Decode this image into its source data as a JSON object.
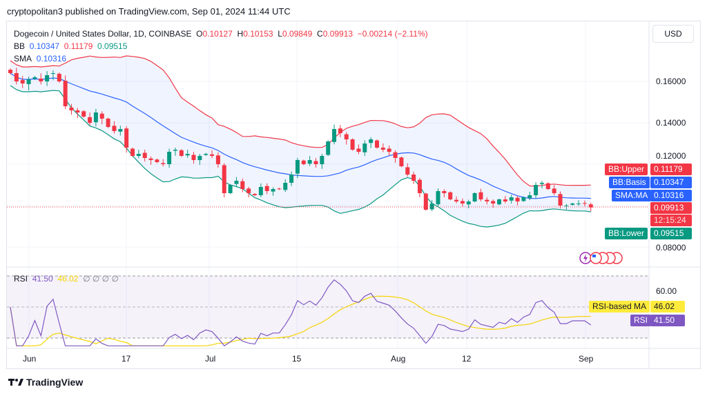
{
  "publish_line": "cryptopolitan3 published on TradingView.com, Sep 01, 2024 11:44 UTC",
  "symbol": {
    "title": "Dogecoin / United States Dollar, 1D, COINBASE",
    "o_label": "O",
    "o": "0.10127",
    "h_label": "H",
    "h": "0.10153",
    "l_label": "L",
    "l": "0.09849",
    "c_label": "C",
    "c": "0.09913",
    "change": "−0.00214 (−2.11%)"
  },
  "bb": {
    "label": "BB",
    "basis": "0.10347",
    "upper": "0.11179",
    "lower": "0.09515"
  },
  "sma": {
    "label": "SMA",
    "value": "0.10316"
  },
  "rsi_legend": {
    "label": "RSI",
    "rsi": "41.50",
    "ma": "46.02",
    "extra": "∅ ∅ ∅ ∅"
  },
  "currency": "USD",
  "price_axis": [
    "0.16000",
    "0.14000",
    "0.12000",
    "0.08000"
  ],
  "rsi_axis": [
    "60.00"
  ],
  "tags": {
    "bb_upper": [
      "BB:Upper",
      "0.11179"
    ],
    "bb_basis": [
      "BB:Basis",
      "0.10347"
    ],
    "sma": [
      "SMA:MA",
      "0.10316"
    ],
    "last": [
      "0.09913",
      "12:15:24"
    ],
    "bb_lower": [
      "BB:Lower",
      "0.09515"
    ],
    "rsi_ma": [
      "RSI-based MA",
      "46.02"
    ],
    "rsi": [
      "RSI",
      "41.50"
    ]
  },
  "x_axis": [
    "Jun",
    "17",
    "Jul",
    "15",
    "Aug",
    "12",
    "Sep"
  ],
  "brand": "TradingView",
  "colors": {
    "up": "#089981",
    "down": "#f23645",
    "basis": "#2962ff",
    "upper": "#f23645",
    "lower": "#089981",
    "rsi": "#7e57c2",
    "rsi_ma": "#f5d400"
  },
  "chart_data": {
    "type": "candlestick",
    "start": "2024-05-29",
    "interval": "1D",
    "closes": [
      0.164,
      0.16,
      0.159,
      0.161,
      0.162,
      0.16,
      0.163,
      0.164,
      0.16,
      0.148,
      0.146,
      0.145,
      0.143,
      0.14,
      0.145,
      0.142,
      0.138,
      0.136,
      0.137,
      0.128,
      0.124,
      0.125,
      0.123,
      0.122,
      0.121,
      0.12,
      0.126,
      0.127,
      0.124,
      0.125,
      0.122,
      0.124,
      0.125,
      0.124,
      0.12,
      0.106,
      0.11,
      0.112,
      0.108,
      0.106,
      0.105,
      0.109,
      0.107,
      0.108,
      0.108,
      0.111,
      0.115,
      0.122,
      0.12,
      0.122,
      0.12,
      0.124,
      0.131,
      0.137,
      0.135,
      0.132,
      0.127,
      0.126,
      0.13,
      0.132,
      0.128,
      0.127,
      0.126,
      0.123,
      0.119,
      0.115,
      0.112,
      0.106,
      0.098,
      0.101,
      0.107,
      0.106,
      0.103,
      0.102,
      0.101,
      0.102,
      0.106,
      0.103,
      0.102,
      0.101,
      0.103,
      0.102,
      0.104,
      0.102,
      0.104,
      0.105,
      0.11,
      0.111,
      0.108,
      0.106,
      0.1,
      0.1,
      0.101,
      0.101,
      0.101,
      0.0991
    ],
    "y_range": [
      0.075,
      0.175
    ],
    "rsi_range": [
      30,
      70
    ]
  }
}
